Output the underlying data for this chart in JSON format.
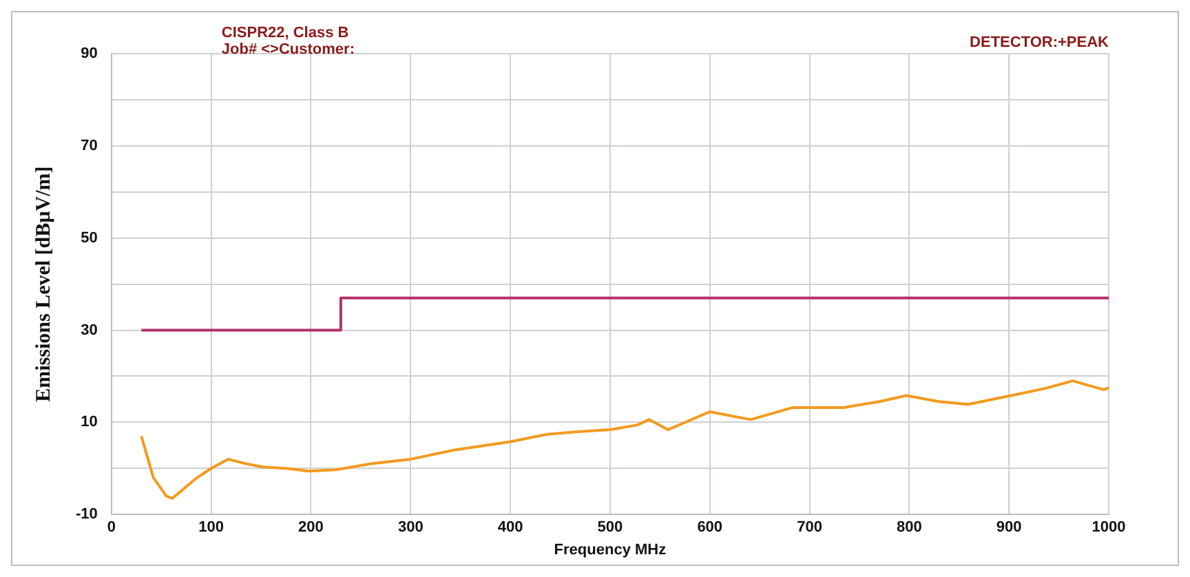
{
  "chart_data": {
    "type": "line",
    "xlabel": "Frequency MHz",
    "ylabel": "Emissions Level [dBµV/m]",
    "annotations": [
      "CISPR22, Class B",
      "Job# <>Customer:",
      "DETECTOR:+PEAK"
    ],
    "xlim": [
      0,
      1000
    ],
    "xticks": [
      0,
      100,
      200,
      300,
      400,
      500,
      600,
      700,
      800,
      900,
      1000
    ],
    "ylim": [
      -10,
      90
    ],
    "yticks": [
      -10,
      {
        "value": 0,
        "label": null
      },
      10,
      {
        "value": 20,
        "label": null
      },
      30,
      {
        "value": 40,
        "label": null
      },
      50,
      {
        "value": 60,
        "label": null
      },
      70,
      {
        "value": 80,
        "label": null
      },
      90
    ],
    "grid": true,
    "marker": "none",
    "line_style": "solid",
    "series": [
      {
        "color": "#b5306e",
        "x": [
          30,
          230,
          230,
          1000
        ],
        "values": [
          30,
          30,
          37,
          37
        ]
      },
      {
        "color": "#f39a1e",
        "x": [
          30,
          42,
          55,
          61,
          84,
          100,
          117,
          135,
          152,
          175,
          198,
          225,
          260,
          300,
          344,
          400,
          437,
          470,
          500,
          527,
          539,
          558,
          600,
          641,
          683,
          734,
          770,
          797,
          830,
          859,
          902,
          937,
          964,
          980,
          995,
          1000
        ],
        "values": [
          7,
          -2,
          -6,
          -6.5,
          -2.3,
          0,
          2,
          1,
          0.3,
          0,
          -0.6,
          -0.3,
          1,
          2,
          4,
          5.8,
          7.4,
          8,
          8.4,
          9.4,
          10.6,
          8.4,
          12.3,
          10.6,
          13.2,
          13.2,
          14.5,
          15.8,
          14.5,
          13.9,
          15.8,
          17.4,
          19,
          18,
          17.1,
          17.5
        ]
      }
    ]
  }
}
